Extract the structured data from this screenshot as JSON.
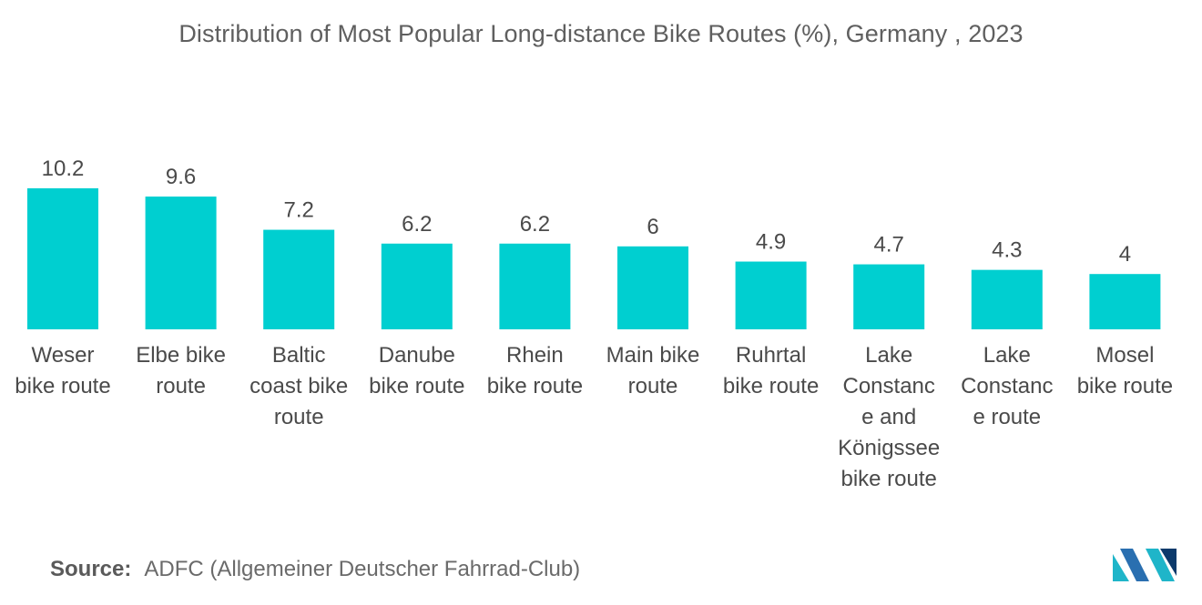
{
  "title": "Distribution of Most Popular Long-distance Bike Routes (%), Germany , 2023",
  "source": {
    "label": "Source:",
    "text": "ADFC (Allgemeiner Deutscher Fahrrad-Club)"
  },
  "logo": {
    "icon": "mordor-intelligence-logo-icon",
    "colors": [
      "#1fb5c9",
      "#2a6fb0",
      "#0c3a6b"
    ]
  },
  "chart_data": {
    "type": "bar",
    "title": "Distribution of Most Popular Long-distance Bike Routes (%), Germany , 2023",
    "xlabel": "",
    "ylabel": "",
    "ylim": [
      0,
      11
    ],
    "grid": false,
    "legend": "none",
    "bar_color": "#00cfd0",
    "categories": [
      "Weser bike route",
      "Elbe bike route",
      "Baltic coast bike route",
      "Danube bike route",
      "Rhein bike route",
      "Main bike route",
      "Ruhrtal bike route",
      "Lake Constance and Königssee bike route",
      "Lake Constance route",
      "Mosel bike route"
    ],
    "category_lines": [
      [
        "Weser",
        "bike route"
      ],
      [
        "Elbe bike",
        "route"
      ],
      [
        "Baltic",
        "coast bike",
        "route"
      ],
      [
        "Danube",
        "bike route"
      ],
      [
        "Rhein",
        "bike route"
      ],
      [
        "Main bike",
        "route"
      ],
      [
        "Ruhrtal",
        "bike route"
      ],
      [
        "Lake",
        "Constanc",
        "e and",
        "Königssee",
        "bike route"
      ],
      [
        "Lake",
        "Constanc",
        "e route"
      ],
      [
        "Mosel",
        "bike route"
      ]
    ],
    "values": [
      10.2,
      9.6,
      7.2,
      6.2,
      6.2,
      6,
      4.9,
      4.7,
      4.3,
      4
    ],
    "value_labels": [
      "10.2",
      "9.6",
      "7.2",
      "6.2",
      "6.2",
      "6",
      "4.9",
      "4.7",
      "4.3",
      "4"
    ]
  }
}
